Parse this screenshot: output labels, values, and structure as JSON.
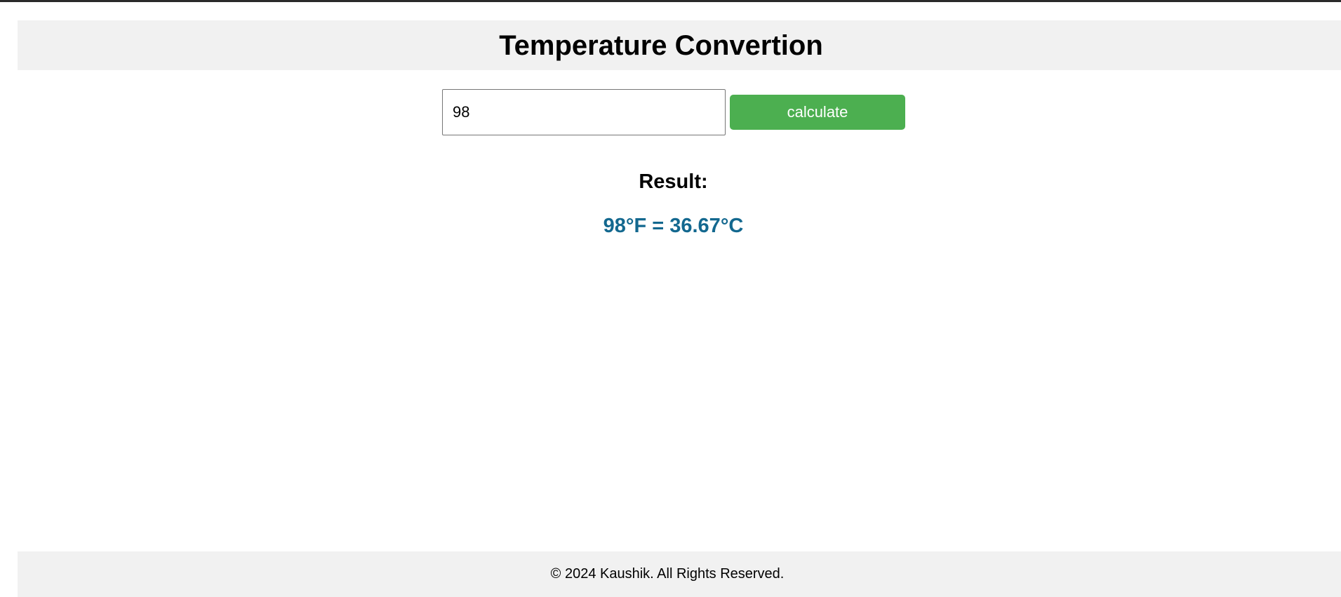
{
  "header": {
    "title": "Temperature Convertion"
  },
  "form": {
    "input_value": "98",
    "button_label": "calculate"
  },
  "result": {
    "heading": "Result:",
    "value": "98°F = 36.67°C"
  },
  "footer": {
    "text": "© 2024 Kaushik. All Rights Reserved."
  },
  "colors": {
    "button_bg": "#4caf50",
    "result_text": "#13688f",
    "header_footer_bg": "#f1f1f1"
  }
}
